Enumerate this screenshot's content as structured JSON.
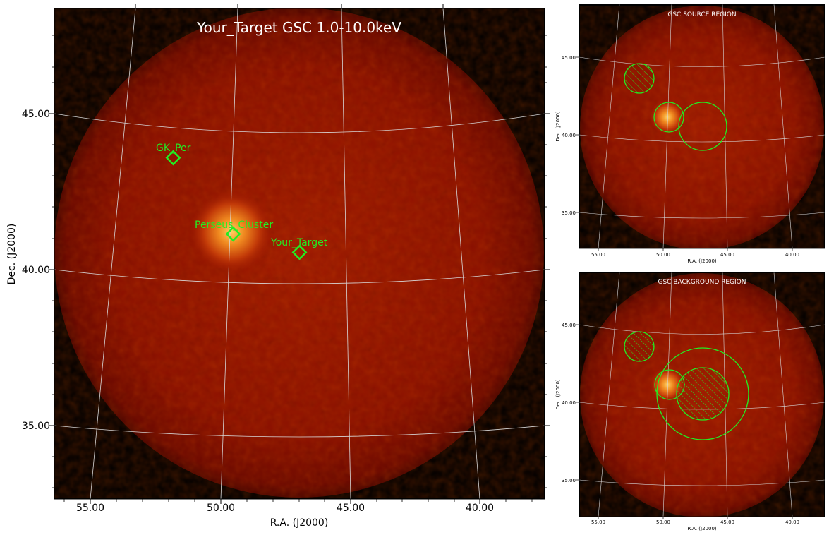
{
  "main_panel": {
    "title": "Your_Target GSC 1.0-10.0keV",
    "xlabel": "R.A. (J2000)",
    "ylabel": "Dec. (J2000)",
    "x_ticks": [
      "55.00",
      "50.00",
      "45.00",
      "40.00"
    ],
    "y_ticks": [
      "45.00",
      "40.00",
      "35.00"
    ],
    "sources": [
      {
        "label": "GK_Per"
      },
      {
        "label": "Perseus_Cluster"
      },
      {
        "label": "Your_Target"
      }
    ]
  },
  "source_panel": {
    "title": "GSC SOURCE REGION",
    "xlabel": "R.A. (J2000)",
    "ylabel": "Dec. (J2000)",
    "x_ticks": [
      "55.00",
      "50.00",
      "45.00",
      "40.00"
    ],
    "y_ticks": [
      "45.00",
      "40.00",
      "35.00"
    ]
  },
  "background_panel": {
    "title": "GSC BACKGROUND REGION",
    "xlabel": "R.A. (J2000)",
    "ylabel": "Dec. (J2000)",
    "x_ticks": [
      "55.00",
      "50.00",
      "45.00",
      "40.00"
    ],
    "y_ticks": [
      "45.00",
      "40.00",
      "35.00"
    ]
  },
  "colors": {
    "background_sky": "#000000",
    "field_red": "#8a0e00",
    "marker_green": "#22ee22",
    "grid": "#d8d8d8",
    "title_text": "#ffffff"
  }
}
